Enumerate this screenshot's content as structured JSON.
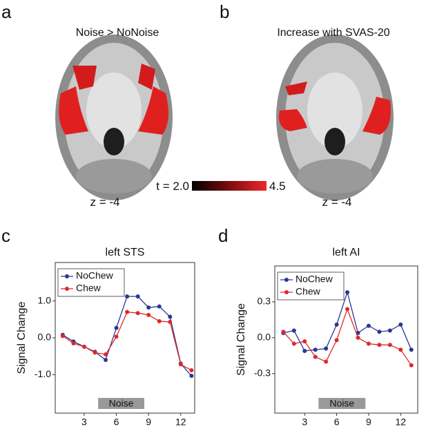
{
  "panels": [
    {
      "letter": "a",
      "title": "Noise > NoNoise",
      "slice": "z = -4"
    },
    {
      "letter": "b",
      "title": "Increase with SVAS-20",
      "slice": "z = -4"
    }
  ],
  "colorbar": {
    "min_label": "t = 2.0",
    "max_label": "4.5"
  },
  "chart_data": [
    {
      "type": "line",
      "letter": "c",
      "title": "left STS",
      "ylabel": "Signal Change",
      "x": [
        1,
        2,
        3,
        4,
        5,
        6,
        7,
        8,
        9,
        10,
        11,
        12,
        13
      ],
      "series": [
        {
          "name": "NoChew",
          "color": "#2b3596",
          "values": [
            0.08,
            -0.1,
            -0.24,
            -0.38,
            -0.6,
            0.27,
            1.12,
            1.12,
            0.82,
            0.85,
            0.57,
            -0.7,
            -1.03
          ]
        },
        {
          "name": "Chew",
          "color": "#e0282a",
          "values": [
            0.05,
            -0.15,
            -0.24,
            -0.4,
            -0.45,
            0.03,
            0.7,
            0.67,
            0.62,
            0.45,
            0.43,
            -0.72,
            -0.88
          ]
        }
      ],
      "xlim": [
        0.3,
        13.3
      ],
      "ylim": [
        -2.04,
        2.04
      ],
      "xticks": [
        3,
        6,
        9,
        12
      ],
      "yticks": [
        {
          "value": 1,
          "label": "1.0"
        },
        {
          "value": 0,
          "label": "0.0"
        },
        {
          "value": -1,
          "label": "-1.0"
        }
      ],
      "legend": "upper left",
      "shade": {
        "label": "Noise",
        "xrange": [
          4.3,
          8.6
        ]
      }
    },
    {
      "type": "line",
      "letter": "d",
      "title": "left AI",
      "ylabel": "Signal Change",
      "x": [
        1,
        2,
        3,
        4,
        5,
        6,
        7,
        8,
        9,
        10,
        11,
        12,
        13
      ],
      "series": [
        {
          "name": "NoChew",
          "color": "#2b3596",
          "values": [
            0.04,
            0.06,
            -0.11,
            -0.1,
            -0.09,
            0.11,
            0.38,
            0.04,
            0.1,
            0.05,
            0.06,
            0.11,
            -0.1
          ]
        },
        {
          "name": "Chew",
          "color": "#e0282a",
          "values": [
            0.05,
            -0.05,
            -0.03,
            -0.16,
            -0.2,
            -0.02,
            0.24,
            0.0,
            -0.05,
            -0.06,
            -0.06,
            -0.1,
            -0.23
          ]
        }
      ],
      "xlim": [
        0.2,
        13.6
      ],
      "ylim": [
        -0.63,
        0.6
      ],
      "xticks": [
        3,
        6,
        9,
        12
      ],
      "yticks": [
        0.3,
        {
          "value": 0,
          "label": "0.0"
        },
        -0.3
      ],
      "legend": "upper left",
      "shade": {
        "label": "Noise",
        "xrange": [
          4.3,
          8.7
        ]
      }
    }
  ]
}
